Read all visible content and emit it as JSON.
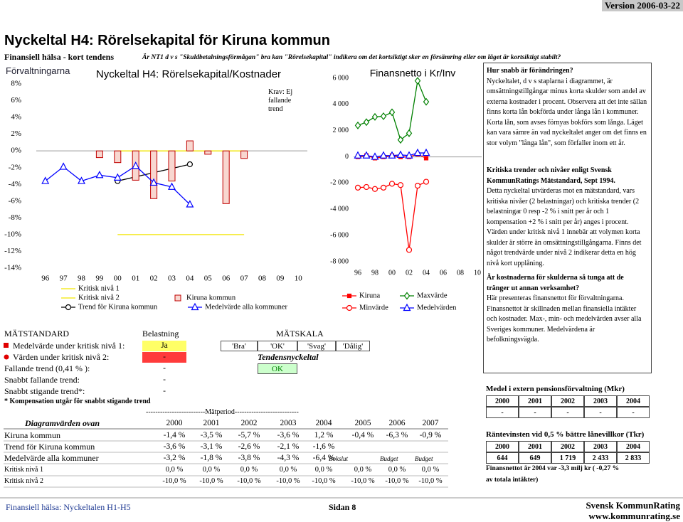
{
  "header": {
    "version": "Version 2006-03-22",
    "title": "Nyckeltal H4: Rörelsekapital för Kiruna kommun",
    "subtitle": "Finansiell hälsa - kort tendens",
    "question": "Är NT1 d v s \"Skuldbetalningsförmågan\" bra kan \"Rörelsekapital\" indikera om det kortsiktigt sker en försämring eller om läget är kortsiktigt stabilt?"
  },
  "section_label": "Förvaltningarna",
  "chart_data": [
    {
      "type": "bar",
      "title": "Nyckeltal H4: Rörelsekapital/Kostnader",
      "annotation": "Krav: Ej fallande trend",
      "categories": [
        "96",
        "97",
        "98",
        "99",
        "00",
        "01",
        "02",
        "03",
        "04",
        "05",
        "06",
        "07",
        "08",
        "09",
        "10"
      ],
      "ylim": [
        -14,
        8
      ],
      "yticks": [
        {
          "value": 8,
          "label": "8%"
        },
        {
          "value": 6,
          "label": "6%"
        },
        {
          "value": 4,
          "label": "4%"
        },
        {
          "value": 2,
          "label": "2%"
        },
        {
          "value": 0,
          "label": "0%"
        },
        {
          "value": -2,
          "label": "-2%"
        },
        {
          "value": -4,
          "label": "-4%"
        },
        {
          "value": -6,
          "label": "-6%"
        },
        {
          "value": -8,
          "label": "-8%"
        },
        {
          "value": -10,
          "label": "-10%"
        },
        {
          "value": -12,
          "label": "-12%"
        },
        {
          "value": -14,
          "label": "-14%"
        }
      ],
      "grid": false,
      "series": [
        {
          "name": "Kritisk nivå 1",
          "type": "line",
          "color": "#f2e600",
          "values": [
            null,
            null,
            null,
            null,
            0,
            0,
            0,
            0,
            0,
            0,
            0,
            0,
            null,
            null,
            null
          ],
          "value_labels": [
            null,
            null,
            null,
            null,
            "0,0 %",
            "0,0 %",
            "0,0 %",
            "0,0 %",
            "0,0 %",
            "0,0 %",
            "0,0 %",
            "0,0 %",
            null,
            null,
            null
          ]
        },
        {
          "name": "Kritisk nivå 2",
          "type": "line",
          "color": "#f2e600",
          "values": [
            null,
            null,
            null,
            null,
            -10,
            -10,
            -10,
            -10,
            -10,
            -10,
            -10,
            -10,
            null,
            null,
            null
          ],
          "value_labels": [
            null,
            null,
            null,
            null,
            "-10,0 %",
            "-10,0 %",
            "-10,0 %",
            "-10,0 %",
            "-10,0 %",
            "-10,0 %",
            "-10,0 %",
            "-10,0 %",
            null,
            null,
            null
          ]
        },
        {
          "name": "Trend för Kiruna kommun",
          "type": "line",
          "color": "#000000",
          "marker": "circle",
          "values": [
            null,
            null,
            null,
            null,
            -3.6,
            -3.1,
            -2.6,
            -2.1,
            -1.6,
            null,
            null,
            null,
            null,
            null,
            null
          ],
          "value_labels": [
            null,
            null,
            null,
            null,
            "-3,6 %",
            "-3,1 %",
            "-2,6 %",
            "-2,1 %",
            "-1,6 %",
            null,
            null,
            null,
            null,
            null,
            null
          ]
        },
        {
          "name": "Kiruna kommun",
          "type": "bar",
          "color": "#c00000",
          "fill": "#f8d7d0",
          "values": [
            null,
            null,
            null,
            -0.8,
            -1.4,
            -3.5,
            -5.7,
            -3.6,
            1.2,
            -0.4,
            -6.3,
            -0.9,
            null,
            null,
            null
          ],
          "value_labels": [
            null,
            null,
            null,
            null,
            "-1,4 %",
            "-3,5 %",
            "-5,7 %",
            "-3,6 %",
            "1,2 %",
            "-0,4 %",
            "-6,3 %",
            "-0,9 %",
            null,
            null,
            null
          ]
        },
        {
          "name": "Medelvärde alla kommuner",
          "type": "line",
          "color": "#0000ff",
          "marker": "triangle",
          "values": [
            -3.6,
            -1.9,
            -3.6,
            -2.9,
            -3.2,
            -1.8,
            -3.8,
            -4.3,
            -6.4,
            null,
            null,
            null,
            null,
            null,
            null
          ],
          "value_labels": [
            null,
            null,
            null,
            null,
            "-3,2 %",
            "-1,8 %",
            "-3,8 %",
            "-4,3 %",
            "-6,4 %",
            null,
            null,
            null,
            null,
            null,
            null
          ]
        }
      ]
    },
    {
      "type": "line",
      "title": "Finansnetto i Kr/Inv",
      "categories": [
        "96",
        null,
        "98",
        null,
        "00",
        null,
        "02",
        null,
        "04",
        null,
        "06",
        null,
        "08",
        null,
        "10"
      ],
      "ylim": [
        -8000,
        6000
      ],
      "yticks": [
        {
          "value": 6000,
          "label": "6 000"
        },
        {
          "value": 4000,
          "label": "4 000"
        },
        {
          "value": 2000,
          "label": "2 000"
        },
        0,
        {
          "value": -2000,
          "label": "-2 000"
        },
        {
          "value": -4000,
          "label": "-4 000"
        },
        {
          "value": -6000,
          "label": "-6 000"
        },
        {
          "value": -8000,
          "label": "-8 000"
        }
      ],
      "grid": false,
      "series": [
        {
          "name": "Kiruna",
          "color": "#ff0000",
          "marker": "square",
          "values": [
            0,
            100,
            -100,
            0,
            100,
            0,
            0,
            200,
            -100,
            null,
            null,
            null,
            null,
            null,
            null
          ]
        },
        {
          "name": "Maxvärde",
          "color": "#008000",
          "marker": "diamond",
          "values": [
            2400,
            2650,
            3050,
            3100,
            3400,
            1300,
            1800,
            5800,
            4200,
            null,
            null,
            null,
            null,
            null,
            null
          ]
        },
        {
          "name": "Minvärde",
          "color": "#ff0000",
          "marker": "circle",
          "values": [
            -2350,
            -2300,
            -2450,
            -2350,
            -2050,
            -2150,
            -7100,
            -2200,
            -1900,
            null,
            null,
            null,
            null,
            null,
            null
          ]
        },
        {
          "name": "Medelvärden",
          "color": "#0000ff",
          "marker": "triangle",
          "values": [
            100,
            100,
            0,
            100,
            100,
            150,
            100,
            300,
            300,
            null,
            null,
            null,
            null,
            null,
            null
          ]
        }
      ]
    }
  ],
  "standard": {
    "heading": "MÄTSTANDARD",
    "load_heading": "Belastning",
    "scale_heading": "MÄTSKALA",
    "rows": [
      {
        "label": "Medelvärde under kritisk nivå 1:",
        "value": "Ja"
      },
      {
        "label": "Värden under kritisk nivå 2:",
        "value": "-"
      },
      {
        "label": "Fallande trend (0,41 % ):",
        "value": "-"
      },
      {
        "label": "Snabbt fallande trend:",
        "value": "-"
      },
      {
        "label": "Snabbt stigande trend*:",
        "value": "-"
      }
    ],
    "scale": [
      "'Bra'",
      "'OK'",
      "'Svag'",
      "'Dålig'"
    ],
    "trend_heading": "Tendensnyckeltal",
    "trend_result": "OK",
    "footnote": "* Kompensation utgår för snabbt stigande trend"
  },
  "diagram_table": {
    "period": "-------------------------Mätperiod---------------------------",
    "title": "Diagramvärden ovan",
    "years": [
      "2000",
      "2001",
      "2002",
      "2003",
      "2004",
      "2005",
      "2006",
      "2007"
    ],
    "notes": [
      "Bokslut",
      "Budget",
      "Budget"
    ]
  },
  "text_panel": [
    {
      "heading": "Hur snabb är förändringen?",
      "body": "Nyckeltalet, d v s staplarna i diagrammet, är omsättningstillgångar minus korta skulder som andel av externa kostnader i procent. Observera att det inte sällan finns korta lån bokförda under långa lån i kommuner. Korta lån, som avses förnyas bokförs som långa. Läget kan vara sämre än vad nyckeltalet anger om det finns en stor volym \"långa lån\", som förfaller inom ett år."
    },
    {
      "heading": "Kritiska trender och nivåer enligt Svensk KommunRatings Mätstandard, Sept 1994.",
      "body": "Detta nyckeltal utvärderas mot en mätstandard, vars kritiska nivåer (2 belastningar) och kritiska trender (2 belastningar 0 resp -2 % i snitt per år och 1 kompensation +2 % i snitt per år) anges i procent. Värden under kritisk nivå 1 innebär att volymen korta skulder är större än omsättningstillgångarna. Finns det något trendvärde under nivå 2 indikerar detta en hög nivå kort upplåning."
    },
    {
      "heading": "Är kostnaderna för skulderna så tunga att de tränger ut annan verksamhet?",
      "body": "Här presenteras finansnettot för förvaltningarna. Finansnettot är skillnaden mellan finansiella intäkter och kostnader. Max-, min- och medelvärden avser alla Sveriges kommuner. Medelvärdena är befolkningsvägda."
    }
  ],
  "pension": {
    "title": "Medel i extern pensionsförvaltning (Mkr)",
    "years": [
      "2000",
      "2001",
      "2002",
      "2003",
      "2004"
    ],
    "values": [
      "-",
      "-",
      "-",
      "-",
      "-"
    ]
  },
  "interest": {
    "title": "Räntevinsten vid 0,5 % bättre lånevillkor (Tkr)",
    "years": [
      "2000",
      "2001",
      "2002",
      "2003",
      "2004"
    ],
    "values": [
      "644",
      "649",
      "1 719",
      "2 433",
      "2 833"
    ]
  },
  "note": [
    "Finansnettot är 2004 var -3,3 milj kr ( -0,27 %",
    "av totala intäkter)"
  ],
  "footer": {
    "left": "Finansiell hälsa: Nyckeltalen H1-H5",
    "page": "Sidan 8",
    "org": "Svensk KommunRating",
    "url": "www.kommunrating.se"
  }
}
